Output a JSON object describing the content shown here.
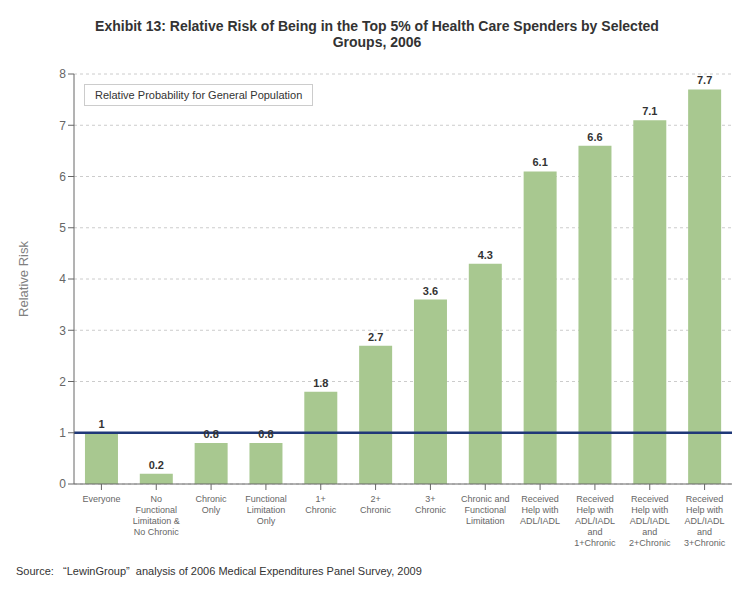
{
  "chart_data": {
    "type": "bar",
    "title": "Exhibit 13: Relative Risk of Being in the Top 5% of Health Care Spenders by Selected\nGroups, 2006",
    "ylabel": "Relative Risk",
    "categories": [
      "Everyone",
      "No\nFunctional\nLimitation &\nNo Chronic",
      "Chronic\nOnly",
      "Functional\nLimitation\nOnly",
      "1+\nChronic",
      "2+\nChronic",
      "3+\nChronic",
      "Chronic and\nFunctional\nLimitation",
      "Received\nHelp with\nADL/IADL",
      "Received\nHelp with\nADL/IADL\nand\n1+Chronic",
      "Received\nHelp with\nADL/IADL\nand\n2+Chronic",
      "Received\nHelp with\nADL/IADL\nand\n3+Chronic"
    ],
    "values": [
      1.0,
      0.2,
      0.8,
      0.8,
      1.8,
      2.7,
      3.6,
      4.3,
      6.1,
      6.6,
      7.1,
      7.7
    ],
    "value_labels": [
      "1",
      "0.2",
      "0.8",
      "0.8",
      "1.8",
      "2.7",
      "3.6",
      "4.3",
      "6.1",
      "6.6",
      "7.1",
      "7.7"
    ],
    "data_labels": true,
    "color": "#a8c890",
    "reference_line": {
      "y": 1.0,
      "color": "#1f3878"
    },
    "annotation": "Relative Probability for General Population",
    "source": "Source:   “LewinGroup”  analysis of 2006 Medical Expenditures Panel Survey, 2009",
    "ylim": [
      0,
      8
    ],
    "yticks": [
      0,
      1,
      2,
      3,
      4,
      5,
      6,
      7,
      8
    ],
    "grid": true
  }
}
